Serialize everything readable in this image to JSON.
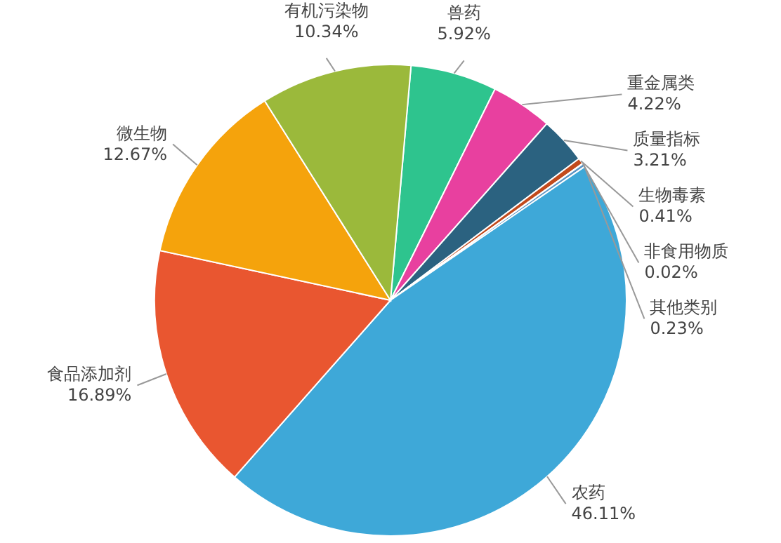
{
  "chart_data": {
    "type": "pie",
    "categories": [
      "兽药",
      "重金属类",
      "质量指标",
      "生物毒素",
      "非食用物质",
      "其他类别",
      "农药",
      "食品添加剂",
      "微生物",
      "有机污染物"
    ],
    "values": [
      5.92,
      4.22,
      3.21,
      0.41,
      0.02,
      0.23,
      46.11,
      16.89,
      12.67,
      10.34
    ],
    "colors": [
      "#2ec48e",
      "#e8409f",
      "#2b6280",
      "#c24a1c",
      "#8a8a8a",
      "#5a94c4",
      "#3ea8d8",
      "#e95630",
      "#f5a30c",
      "#9bb93b"
    ],
    "value_labels": [
      "5.92%",
      "4.22%",
      "3.21%",
      "0.41%",
      "0.02%",
      "0.23%",
      "46.11%",
      "16.89%",
      "12.67%",
      "10.34%"
    ]
  }
}
